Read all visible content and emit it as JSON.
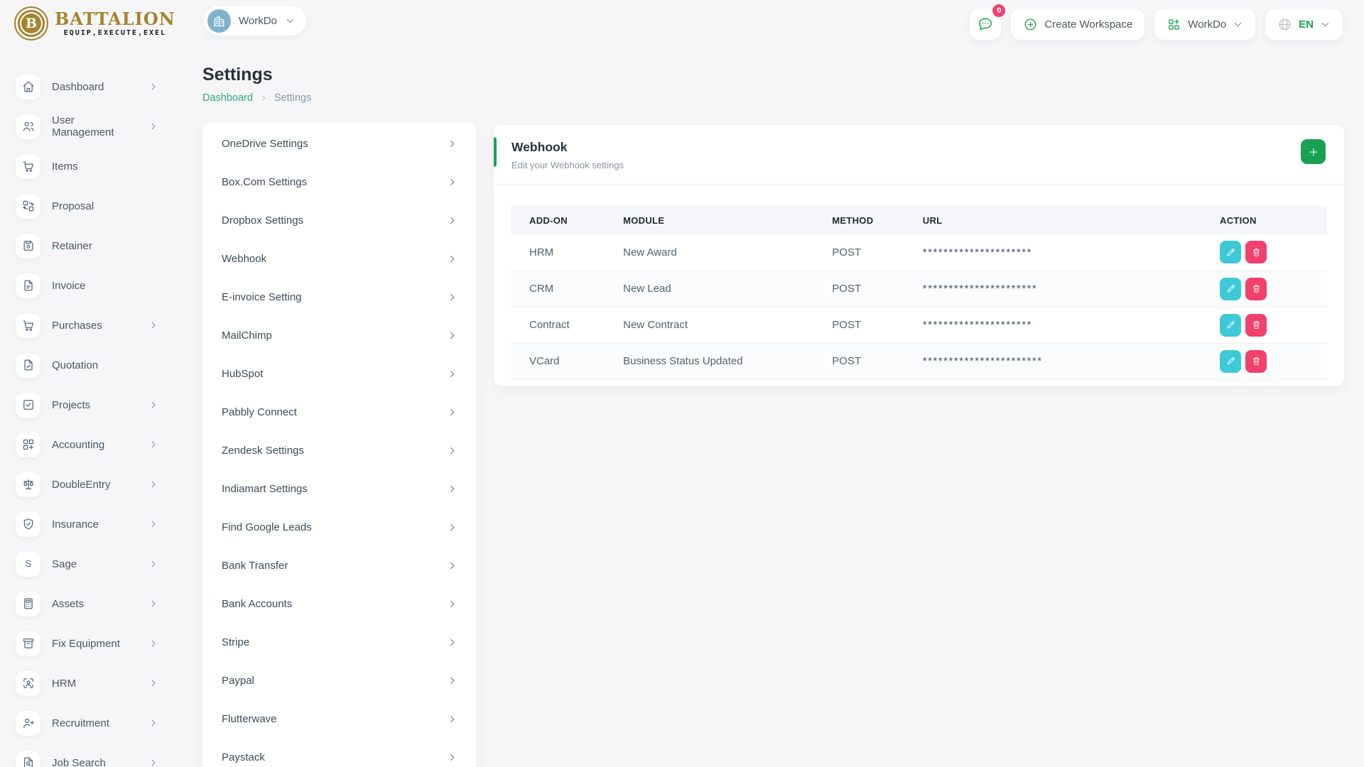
{
  "brand": {
    "name": "BATTALION",
    "tagline": "EQUIP,EXECUTE,EXEL",
    "initial": "B"
  },
  "topbar": {
    "workspace_switcher": {
      "label": "WorkDo",
      "icon": "building"
    },
    "messages": {
      "icon": "chat",
      "badge_count": "0"
    },
    "create_workspace": {
      "label": "Create Workspace",
      "icon": "circle-plus"
    },
    "workdo_menu": {
      "label": "WorkDo",
      "icon": "grid-plus"
    },
    "language_menu": {
      "label": "EN",
      "icon": "globe"
    }
  },
  "sidebar": {
    "items": [
      {
        "label": "Dashboard",
        "icon": "home",
        "has_children": true
      },
      {
        "label": "User Management",
        "icon": "users",
        "has_children": true
      },
      {
        "label": "Items",
        "icon": "cart",
        "has_children": false
      },
      {
        "label": "Proposal",
        "icon": "swap-boxes",
        "has_children": false
      },
      {
        "label": "Retainer",
        "icon": "floppy",
        "has_children": false
      },
      {
        "label": "Invoice",
        "icon": "file-text",
        "has_children": false
      },
      {
        "label": "Purchases",
        "icon": "cart",
        "has_children": true
      },
      {
        "label": "Quotation",
        "icon": "file-check",
        "has_children": false
      },
      {
        "label": "Projects",
        "icon": "check-square",
        "has_children": true
      },
      {
        "label": "Accounting",
        "icon": "grid-add",
        "has_children": true
      },
      {
        "label": "DoubleEntry",
        "icon": "scales",
        "has_children": true
      },
      {
        "label": "Insurance",
        "icon": "shield-check",
        "has_children": true
      },
      {
        "label": "Sage",
        "icon": "letter-s",
        "has_children": true
      },
      {
        "label": "Assets",
        "icon": "calculator",
        "has_children": true
      },
      {
        "label": "Fix Equipment",
        "icon": "archive",
        "has_children": true
      },
      {
        "label": "HRM",
        "icon": "user-focus",
        "has_children": true
      },
      {
        "label": "Recruitment",
        "icon": "user-plus",
        "has_children": true
      },
      {
        "label": "Job Search",
        "icon": "doc-search",
        "has_children": true
      }
    ]
  },
  "page": {
    "title": "Settings",
    "breadcrumb": {
      "link": "Dashboard",
      "current": "Settings"
    }
  },
  "settings_menu": {
    "items": [
      "OneDrive Settings",
      "Box.Com Settings",
      "Dropbox Settings",
      "Webhook",
      "E-invoice Setting",
      "MailChimp",
      "HubSpot",
      "Pabbly Connect",
      "Zendesk Settings",
      "Indiamart Settings",
      "Find Google Leads",
      "Bank Transfer",
      "Bank Accounts",
      "Stripe",
      "Paypal",
      "Flutterwave",
      "Paystack"
    ]
  },
  "webhook": {
    "title": "Webhook",
    "subtitle": "Edit your Webhook settings",
    "columns": [
      "ADD-ON",
      "MODULE",
      "METHOD",
      "URL",
      "ACTION"
    ],
    "rows": [
      {
        "addon": "HRM",
        "module": "New Award",
        "method": "POST",
        "url": "*********************"
      },
      {
        "addon": "CRM",
        "module": "New Lead",
        "method": "POST",
        "url": "**********************"
      },
      {
        "addon": "Contract",
        "module": "New Contract",
        "method": "POST",
        "url": "*********************"
      },
      {
        "addon": "VCard",
        "module": "Business Status Updated",
        "method": "POST",
        "url": "***********************"
      }
    ]
  },
  "colors": {
    "bg": "#f6f6f8",
    "green": "#1aa053",
    "link_green": "#2ca87f",
    "teal": "#3ec9d6",
    "pink": "#f1416c",
    "gold": "#a3852e",
    "avatar_blue": "#7fb2cb"
  }
}
